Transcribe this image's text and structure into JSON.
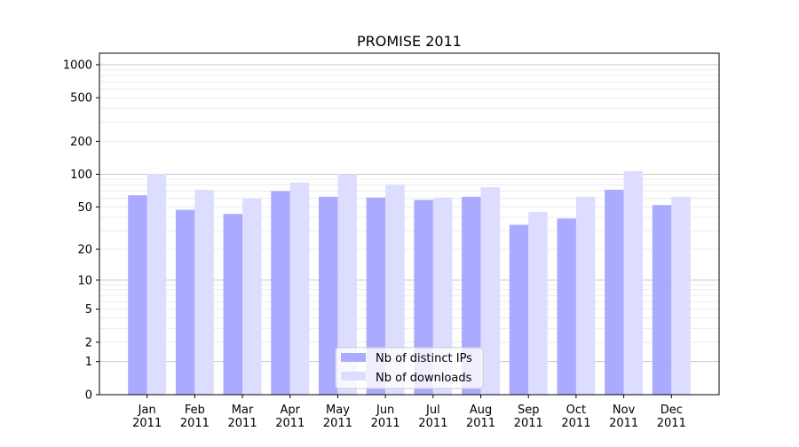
{
  "chart_data": {
    "type": "bar",
    "title": "PROMISE 2011",
    "xlabel": "",
    "ylabel": "",
    "yscale": "log(1+y)",
    "ylim": [
      0,
      1200
    ],
    "yticks": [
      0,
      1,
      2,
      5,
      10,
      20,
      50,
      100,
      200,
      500,
      1000
    ],
    "grid": true,
    "legend_position": "bottom-center",
    "categories": [
      "Jan\n2011",
      "Feb\n2011",
      "Mar\n2011",
      "Apr\n2011",
      "May\n2011",
      "Jun\n2011",
      "Jul\n2011",
      "Aug\n2011",
      "Sep\n2011",
      "Oct\n2011",
      "Nov\n2011",
      "Dec\n2011"
    ],
    "series": [
      {
        "name": "Nb of distinct IPs",
        "color": "#aaaaff",
        "values": [
          64,
          47,
          43,
          70,
          62,
          61,
          58,
          62,
          34,
          39,
          72,
          52
        ]
      },
      {
        "name": "Nb of downloads",
        "color": "#ddddff",
        "values": [
          101,
          72,
          60,
          84,
          100,
          80,
          61,
          76,
          45,
          62,
          107,
          62
        ]
      }
    ]
  }
}
